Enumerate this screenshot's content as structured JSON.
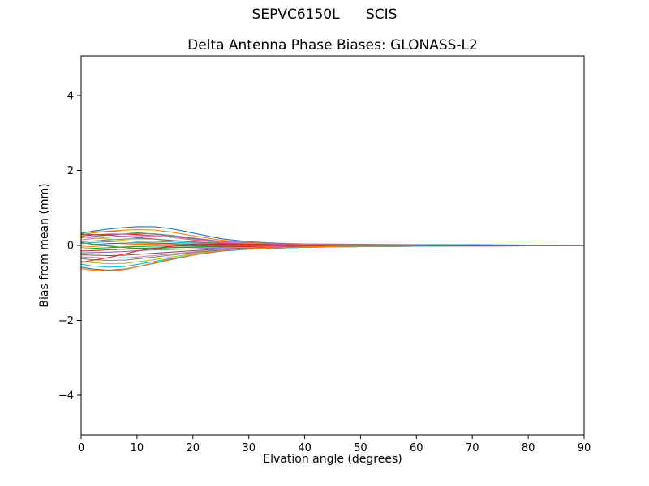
{
  "chart_data": {
    "type": "line",
    "suptitle": "SEPVC6150L      SCIS",
    "title": "Delta Antenna Phase Biases: GLONASS-L2",
    "xlabel": "Elvation angle (degrees)",
    "ylabel": "Bias from mean (mm)",
    "xlim": [
      0,
      90
    ],
    "ylim": [
      -5.06,
      5.06
    ],
    "xticks": [
      0,
      10,
      20,
      30,
      40,
      50,
      60,
      70,
      80,
      90
    ],
    "yticks": [
      -4,
      -2,
      0,
      2,
      4
    ],
    "grid": false,
    "legend": "none",
    "x": [
      0,
      2,
      5,
      8,
      10,
      13,
      16,
      20,
      25,
      30,
      35,
      40,
      50,
      60,
      70,
      80,
      90
    ],
    "series": [
      {
        "name": "line-01",
        "color": "#1f77b4",
        "values": [
          0.32,
          0.38,
          0.44,
          0.48,
          0.5,
          0.5,
          0.45,
          0.33,
          0.18,
          0.1,
          0.06,
          0.04,
          0.03,
          0.02,
          0.02,
          0.01,
          0.01
        ]
      },
      {
        "name": "line-02",
        "color": "#ff7f0e",
        "values": [
          0.28,
          0.33,
          0.38,
          0.41,
          0.42,
          0.41,
          0.36,
          0.26,
          0.14,
          0.08,
          0.05,
          0.03,
          0.02,
          0.01,
          0.01,
          0.01,
          0.0
        ]
      },
      {
        "name": "line-03",
        "color": "#2ca02c",
        "values": [
          0.35,
          0.36,
          0.37,
          0.36,
          0.34,
          0.3,
          0.25,
          0.18,
          0.1,
          0.06,
          0.04,
          0.02,
          0.01,
          0.01,
          0.0,
          0.0,
          0.0
        ]
      },
      {
        "name": "line-04",
        "color": "#d62728",
        "values": [
          0.25,
          0.28,
          0.3,
          0.3,
          0.29,
          0.26,
          0.22,
          0.15,
          0.08,
          0.05,
          0.03,
          0.02,
          0.01,
          0.0,
          0.0,
          0.0,
          0.0
        ]
      },
      {
        "name": "line-05",
        "color": "#9467bd",
        "values": [
          0.2,
          0.24,
          0.28,
          0.31,
          0.32,
          0.31,
          0.27,
          0.2,
          0.11,
          0.06,
          0.03,
          0.02,
          0.01,
          0.01,
          0.0,
          0.0,
          0.0
        ]
      },
      {
        "name": "line-06",
        "color": "#8c564b",
        "values": [
          0.3,
          0.29,
          0.27,
          0.24,
          0.21,
          0.17,
          0.13,
          0.09,
          0.05,
          0.03,
          0.02,
          0.01,
          0.01,
          0.0,
          0.0,
          0.0,
          0.0
        ]
      },
      {
        "name": "line-07",
        "color": "#e377c2",
        "values": [
          0.15,
          0.18,
          0.22,
          0.25,
          0.26,
          0.25,
          0.22,
          0.16,
          0.09,
          0.05,
          0.03,
          0.02,
          0.01,
          0.0,
          0.0,
          0.0,
          0.0
        ]
      },
      {
        "name": "line-08",
        "color": "#7f7f7f",
        "values": [
          0.1,
          0.12,
          0.15,
          0.17,
          0.18,
          0.17,
          0.14,
          0.1,
          0.06,
          0.03,
          0.02,
          0.01,
          0.0,
          0.0,
          0.0,
          0.0,
          0.0
        ]
      },
      {
        "name": "line-09",
        "color": "#bcbd22",
        "values": [
          0.22,
          0.2,
          0.17,
          0.13,
          0.1,
          0.07,
          0.05,
          0.03,
          0.02,
          0.01,
          0.01,
          0.0,
          0.0,
          0.0,
          0.0,
          0.0,
          0.0
        ]
      },
      {
        "name": "line-10",
        "color": "#17becf",
        "values": [
          0.05,
          0.08,
          0.1,
          0.12,
          0.12,
          0.11,
          0.09,
          0.06,
          0.04,
          0.02,
          0.01,
          0.01,
          0.0,
          0.0,
          0.0,
          0.0,
          0.0
        ]
      },
      {
        "name": "line-11",
        "color": "#1f77b4",
        "values": [
          0.0,
          0.02,
          0.05,
          0.06,
          0.07,
          0.06,
          0.05,
          0.03,
          0.02,
          0.01,
          0.01,
          0.0,
          0.0,
          0.0,
          0.0,
          0.0,
          0.0
        ]
      },
      {
        "name": "line-12",
        "color": "#ff7f0e",
        "values": [
          -0.05,
          -0.03,
          0.0,
          0.02,
          0.03,
          0.03,
          0.02,
          0.01,
          0.01,
          0.0,
          0.0,
          0.0,
          0.0,
          0.0,
          0.0,
          0.0,
          0.0
        ]
      },
      {
        "name": "line-13",
        "color": "#2ca02c",
        "values": [
          -0.1,
          -0.08,
          -0.06,
          -0.04,
          -0.03,
          -0.02,
          -0.02,
          -0.01,
          -0.01,
          0.0,
          0.0,
          0.0,
          0.0,
          0.0,
          0.0,
          0.0,
          0.0
        ]
      },
      {
        "name": "line-14",
        "color": "#d62728",
        "values": [
          -0.15,
          -0.14,
          -0.12,
          -0.1,
          -0.08,
          -0.07,
          -0.06,
          -0.05,
          -0.04,
          -0.03,
          -0.02,
          -0.02,
          -0.01,
          -0.01,
          -0.01,
          0.0,
          0.0
        ]
      },
      {
        "name": "line-15",
        "color": "#9467bd",
        "values": [
          -0.2,
          -0.19,
          -0.18,
          -0.16,
          -0.14,
          -0.12,
          -0.11,
          -0.09,
          -0.07,
          -0.06,
          -0.05,
          -0.04,
          -0.03,
          -0.02,
          -0.02,
          -0.01,
          -0.01
        ]
      },
      {
        "name": "line-16",
        "color": "#8c564b",
        "values": [
          -0.25,
          -0.26,
          -0.27,
          -0.26,
          -0.24,
          -0.21,
          -0.18,
          -0.14,
          -0.1,
          -0.08,
          -0.06,
          -0.05,
          -0.03,
          -0.02,
          -0.01,
          -0.01,
          -0.01
        ]
      },
      {
        "name": "line-17",
        "color": "#e377c2",
        "values": [
          -0.3,
          -0.32,
          -0.34,
          -0.33,
          -0.31,
          -0.27,
          -0.23,
          -0.17,
          -0.12,
          -0.09,
          -0.07,
          -0.05,
          -0.03,
          -0.02,
          -0.02,
          -0.01,
          -0.01
        ]
      },
      {
        "name": "line-18",
        "color": "#7f7f7f",
        "values": [
          -0.35,
          -0.38,
          -0.4,
          -0.39,
          -0.36,
          -0.31,
          -0.26,
          -0.19,
          -0.13,
          -0.09,
          -0.07,
          -0.05,
          -0.03,
          -0.02,
          -0.01,
          -0.01,
          0.0
        ]
      },
      {
        "name": "line-19",
        "color": "#bcbd22",
        "values": [
          -0.42,
          -0.46,
          -0.49,
          -0.48,
          -0.44,
          -0.38,
          -0.31,
          -0.22,
          -0.14,
          -0.1,
          -0.07,
          -0.05,
          -0.03,
          -0.02,
          -0.01,
          0.0,
          0.0
        ]
      },
      {
        "name": "line-20",
        "color": "#17becf",
        "values": [
          -0.5,
          -0.55,
          -0.58,
          -0.56,
          -0.51,
          -0.43,
          -0.35,
          -0.25,
          -0.15,
          -0.1,
          -0.07,
          -0.05,
          -0.03,
          -0.02,
          -0.01,
          -0.01,
          0.0
        ]
      },
      {
        "name": "line-21",
        "color": "#1f77b4",
        "values": [
          -0.58,
          -0.63,
          -0.66,
          -0.63,
          -0.57,
          -0.48,
          -0.38,
          -0.26,
          -0.15,
          -0.1,
          -0.07,
          -0.04,
          -0.02,
          -0.01,
          -0.01,
          0.0,
          0.0
        ]
      },
      {
        "name": "line-22",
        "color": "#ff7f0e",
        "values": [
          -0.62,
          -0.66,
          -0.68,
          -0.64,
          -0.57,
          -0.47,
          -0.37,
          -0.25,
          -0.14,
          -0.09,
          -0.06,
          -0.04,
          -0.02,
          -0.01,
          0.0,
          0.0,
          0.0
        ]
      },
      {
        "name": "line-23",
        "color": "#2ca02c",
        "values": [
          0.08,
          0.04,
          -0.02,
          -0.06,
          -0.08,
          -0.08,
          -0.06,
          -0.04,
          -0.02,
          -0.01,
          -0.01,
          0.0,
          0.0,
          0.0,
          0.0,
          0.0,
          0.0
        ]
      },
      {
        "name": "line-24",
        "color": "#d62728",
        "values": [
          -0.45,
          -0.4,
          -0.32,
          -0.22,
          -0.15,
          -0.08,
          -0.03,
          0.02,
          0.04,
          0.03,
          0.02,
          0.01,
          0.01,
          0.0,
          0.0,
          0.0,
          0.0
        ]
      }
    ]
  }
}
